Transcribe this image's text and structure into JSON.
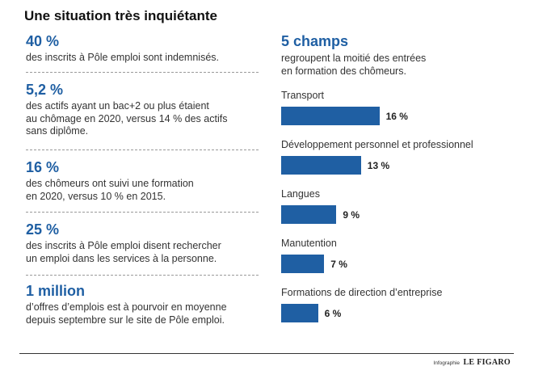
{
  "title": "Une situation très inquiétante",
  "stats": [
    {
      "value": "40 %",
      "description": "des inscrits à Pôle emploi sont indemnisés."
    },
    {
      "value": "5,2 %",
      "description": "des actifs ayant un bac+2 ou plus étaient\nau chômage en 2020, versus 14 % des actifs\nsans diplôme."
    },
    {
      "value": "16 %",
      "description": "des chômeurs ont suivi une formation\nen 2020, versus 10 % en 2015."
    },
    {
      "value": "25 %",
      "description": "des inscrits à Pôle emploi disent rechercher\nun emploi dans les services à la personne."
    },
    {
      "value": "1 million",
      "description": "d’offres d’emplois est à pourvoir en moyenne\ndepuis septembre sur le site de Pôle emploi."
    }
  ],
  "right_panel": {
    "headline": "5 champs",
    "description": "regroupent la moitié des entrées\nen formation des chômeurs."
  },
  "chart_data": {
    "type": "bar",
    "orientation": "horizontal",
    "categories": [
      "Transport",
      "Développement personnel et professionnel",
      "Langues",
      "Manutention",
      "Formations de direction d’entreprise"
    ],
    "values": [
      16,
      13,
      9,
      7,
      6
    ],
    "value_labels": [
      "16 %",
      "13 %",
      "9 %",
      "7 %",
      "6 %"
    ],
    "unit": "%",
    "bar_color": "#1f5fa3",
    "grid": false,
    "legend": "none"
  },
  "footer": {
    "credit_prefix": "Infographie",
    "credit_brand": "LE FIGARO"
  }
}
